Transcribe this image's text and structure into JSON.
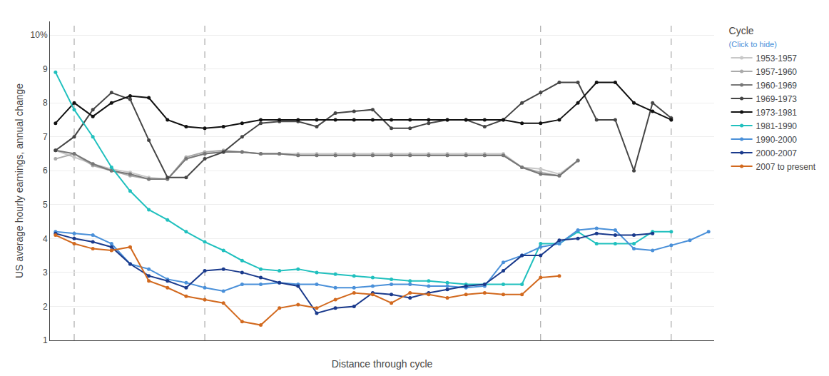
{
  "chart_data": {
    "type": "line",
    "xlabel": "Distance through cycle",
    "ylabel": "US average hourly earnings, annual change",
    "legend_title": "Cycle",
    "legend_subtitle": "(Click to hide)",
    "legend": "right",
    "grid": true,
    "tick_labels": "y",
    "marker": "circle",
    "line_style": "solid",
    "xlim": [
      -0.3,
      35.3
    ],
    "ylim": [
      1.0,
      10.4
    ],
    "yticks": [
      1,
      2,
      3,
      4,
      5,
      6,
      7,
      8,
      9,
      {
        "value": 10,
        "label": "10%"
      }
    ],
    "vlines": [
      1,
      8,
      26,
      33
    ],
    "x": [
      0,
      1,
      2,
      3,
      4,
      5,
      6,
      7,
      8,
      9,
      10,
      11,
      12,
      13,
      14,
      15,
      16,
      17,
      18,
      19,
      20,
      21,
      22,
      23,
      24,
      25,
      26,
      27,
      28,
      29,
      30,
      31,
      32,
      33,
      34,
      35
    ],
    "series": [
      {
        "name": "1953-1957",
        "color": "#c8c8c8",
        "values": [
          6.6,
          6.4,
          6.2,
          6.05,
          5.95,
          5.8,
          5.75,
          6.35,
          6.5,
          6.55,
          6.55,
          6.5,
          6.5,
          6.5,
          6.5,
          6.5,
          6.5,
          6.5,
          6.5,
          6.5,
          6.5,
          6.5,
          6.5,
          6.5,
          6.5,
          6.1,
          6.05,
          5.9,
          6.3,
          null,
          null,
          null,
          null,
          null,
          null,
          null
        ]
      },
      {
        "name": "1957-1960",
        "color": "#aaaaaa",
        "values": [
          6.35,
          6.5,
          6.15,
          6.0,
          5.85,
          5.75,
          5.75,
          6.4,
          6.55,
          6.6,
          6.55,
          6.5,
          6.5,
          6.45,
          6.45,
          6.45,
          6.45,
          6.45,
          6.45,
          6.45,
          6.45,
          6.45,
          6.45,
          6.45,
          6.45,
          6.1,
          5.95,
          5.85,
          6.3,
          null,
          null,
          null,
          null,
          null,
          null,
          null
        ]
      },
      {
        "name": "1960-1969",
        "color": "#777777",
        "values": [
          6.6,
          6.5,
          6.2,
          6.0,
          5.9,
          5.75,
          5.75,
          6.35,
          6.5,
          6.55,
          6.55,
          6.5,
          6.5,
          6.45,
          6.45,
          6.45,
          6.45,
          6.45,
          6.45,
          6.45,
          6.45,
          6.45,
          6.45,
          6.45,
          6.45,
          6.1,
          5.9,
          5.85,
          6.3,
          null,
          null,
          null,
          null,
          null,
          null,
          null
        ]
      },
      {
        "name": "1969-1973",
        "color": "#454545",
        "values": [
          6.6,
          7.0,
          7.8,
          8.3,
          8.1,
          6.9,
          5.8,
          5.8,
          6.35,
          6.55,
          7.0,
          7.4,
          7.45,
          7.45,
          7.3,
          7.7,
          7.75,
          7.8,
          7.25,
          7.25,
          7.4,
          7.5,
          7.5,
          7.3,
          7.5,
          8.0,
          8.3,
          8.6,
          8.6,
          7.5,
          7.5,
          6.0,
          8.0,
          7.55,
          null,
          null
        ]
      },
      {
        "name": "1973-1981",
        "color": "#111111",
        "values": [
          7.4,
          8.0,
          7.6,
          8.0,
          8.2,
          8.15,
          7.5,
          7.3,
          7.25,
          7.3,
          7.4,
          7.5,
          7.5,
          7.5,
          7.5,
          7.5,
          7.5,
          7.5,
          7.5,
          7.5,
          7.5,
          7.5,
          7.5,
          7.5,
          7.5,
          7.4,
          7.4,
          7.5,
          8.0,
          8.6,
          8.6,
          8.0,
          7.75,
          7.5,
          null,
          null
        ]
      },
      {
        "name": "1981-1990",
        "color": "#20c0be",
        "values": [
          8.9,
          7.8,
          7.0,
          6.1,
          5.4,
          4.85,
          4.55,
          4.2,
          3.9,
          3.65,
          3.35,
          3.1,
          3.05,
          3.1,
          3.0,
          2.95,
          2.9,
          2.85,
          2.8,
          2.75,
          2.75,
          2.7,
          2.65,
          2.65,
          2.65,
          2.65,
          3.85,
          3.85,
          4.2,
          3.85,
          3.85,
          3.85,
          4.2,
          4.2,
          null,
          null
        ]
      },
      {
        "name": "1990-2000",
        "color": "#4a90d9",
        "values": [
          4.2,
          4.15,
          4.1,
          3.85,
          3.25,
          3.1,
          2.8,
          2.7,
          2.55,
          2.45,
          2.65,
          2.65,
          2.7,
          2.65,
          2.65,
          2.55,
          2.55,
          2.6,
          2.65,
          2.65,
          2.6,
          2.6,
          2.55,
          2.6,
          3.3,
          3.5,
          3.75,
          3.85,
          4.25,
          4.3,
          4.25,
          3.7,
          3.65,
          3.8,
          3.95,
          4.2
        ]
      },
      {
        "name": "2000-2007",
        "color": "#1a3a8c",
        "values": [
          4.15,
          4.0,
          3.9,
          3.75,
          3.25,
          2.9,
          2.75,
          2.55,
          3.05,
          3.1,
          3.0,
          2.85,
          2.7,
          2.6,
          1.8,
          1.95,
          2.0,
          2.4,
          2.35,
          2.25,
          2.4,
          2.5,
          2.6,
          2.65,
          3.05,
          3.5,
          3.5,
          3.95,
          4.0,
          4.15,
          4.1,
          4.1,
          4.15,
          null,
          null,
          null
        ]
      },
      {
        "name": "2007 to present",
        "color": "#d2691e",
        "values": [
          4.1,
          3.85,
          3.7,
          3.65,
          3.75,
          2.75,
          2.55,
          2.3,
          2.2,
          2.1,
          1.55,
          1.45,
          1.95,
          2.05,
          1.95,
          2.2,
          2.4,
          2.35,
          2.1,
          2.4,
          2.35,
          2.25,
          2.35,
          2.4,
          2.35,
          2.35,
          2.85,
          2.9,
          null,
          null,
          null,
          null,
          null,
          null,
          null,
          null
        ]
      }
    ]
  }
}
